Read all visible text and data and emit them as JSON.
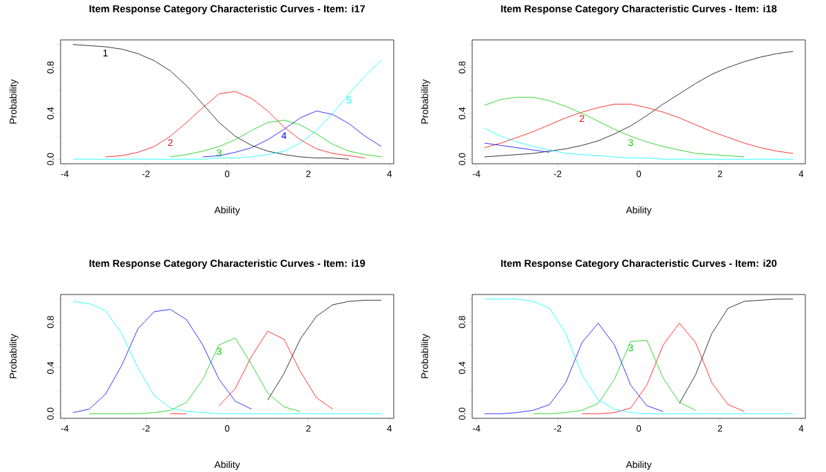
{
  "chart_data": [
    {
      "type": "line",
      "title": "Item Response Category Characteristic Curves - Item: i17",
      "xlabel": "Ability",
      "ylabel": "Probability",
      "marker": "none",
      "line_style": "solid",
      "x": [
        -3.8,
        -3.4,
        -3.0,
        -2.6,
        -2.2,
        -1.8,
        -1.4,
        -1.0,
        -0.6,
        -0.2,
        0.2,
        0.6,
        1.0,
        1.4,
        1.8,
        2.2,
        2.6,
        3.0,
        3.4,
        3.8
      ],
      "xlim": [
        -4.104,
        4.104
      ],
      "xticks": [
        -4,
        -2,
        0,
        2,
        4
      ],
      "ylim": [
        -0.04,
        1.04
      ],
      "yticks": [
        {
          "value": 0,
          "label": "0.0"
        },
        {
          "value": 0.2,
          "label": null
        },
        {
          "value": 0.4,
          "label": "0.4"
        },
        {
          "value": 0.6,
          "label": null
        },
        {
          "value": 0.8,
          "label": "0.8"
        },
        {
          "value": 1.0,
          "label": null
        }
      ],
      "series": [
        {
          "name": "1",
          "color": "#000000",
          "values": [
            1.0,
            0.99,
            0.98,
            0.96,
            0.92,
            0.86,
            0.77,
            0.64,
            0.48,
            0.32,
            0.2,
            0.12,
            0.07,
            0.04,
            0.02,
            0.01,
            0.01,
            0.0,
            null,
            null
          ]
        },
        {
          "name": "2",
          "color": "#ff0000",
          "values": [
            null,
            null,
            0.02,
            0.03,
            0.06,
            0.11,
            0.2,
            0.32,
            0.45,
            0.57,
            0.59,
            0.53,
            0.42,
            0.28,
            0.17,
            0.09,
            0.05,
            0.03,
            0.01,
            null
          ]
        },
        {
          "name": "3",
          "color": "#00cd00",
          "values": [
            null,
            null,
            null,
            null,
            null,
            null,
            0.02,
            0.04,
            0.07,
            0.11,
            0.17,
            0.25,
            0.32,
            0.34,
            0.3,
            0.22,
            0.13,
            0.07,
            0.04,
            0.02
          ]
        },
        {
          "name": "4",
          "color": "#0000ff",
          "values": [
            null,
            null,
            null,
            null,
            null,
            null,
            null,
            null,
            0.02,
            0.03,
            0.06,
            0.1,
            0.17,
            0.26,
            0.36,
            0.42,
            0.39,
            0.31,
            0.2,
            0.11
          ]
        },
        {
          "name": "5",
          "color": "#00ffff",
          "values": [
            0.0,
            0.0,
            0.0,
            0.0,
            0.0,
            0.0,
            0.0,
            0.0,
            0.0,
            0.01,
            0.01,
            0.02,
            0.04,
            0.07,
            0.14,
            0.25,
            0.4,
            0.57,
            0.73,
            0.86
          ]
        }
      ]
    },
    {
      "type": "line",
      "title": "Item Response Category Characteristic Curves - Item: i18",
      "xlabel": "Ability",
      "ylabel": "Probability",
      "marker": "none",
      "line_style": "solid",
      "x": [
        -3.8,
        -3.4,
        -3.0,
        -2.6,
        -2.2,
        -1.8,
        -1.4,
        -1.0,
        -0.6,
        -0.2,
        0.2,
        0.6,
        1.0,
        1.4,
        1.8,
        2.2,
        2.6,
        3.0,
        3.4,
        3.8
      ],
      "xlim": [
        -4.104,
        4.104
      ],
      "xticks": [
        -4,
        -2,
        0,
        2,
        4
      ],
      "ylim": [
        -0.04,
        1.04
      ],
      "yticks": [
        {
          "value": 0,
          "label": "0.0"
        },
        {
          "value": 0.2,
          "label": null
        },
        {
          "value": 0.4,
          "label": "0.4"
        },
        {
          "value": 0.6,
          "label": null
        },
        {
          "value": 0.8,
          "label": "0.8"
        },
        {
          "value": 1.0,
          "label": null
        }
      ],
      "series": [
        {
          "color": "#000000",
          "values": [
            0.02,
            0.03,
            0.04,
            0.05,
            0.07,
            0.09,
            0.12,
            0.16,
            0.22,
            0.29,
            0.38,
            0.48,
            0.57,
            0.66,
            0.74,
            0.8,
            0.85,
            0.89,
            0.92,
            0.94
          ]
        },
        {
          "name": "2",
          "color": "#ff0000",
          "values": [
            0.1,
            0.14,
            0.19,
            0.24,
            0.3,
            0.36,
            0.41,
            0.45,
            0.48,
            0.48,
            0.45,
            0.41,
            0.36,
            0.3,
            0.24,
            0.19,
            0.14,
            0.1,
            0.07,
            0.05
          ]
        },
        {
          "name": "3",
          "color": "#00cd00",
          "values": [
            0.47,
            0.52,
            0.54,
            0.54,
            0.51,
            0.46,
            0.4,
            0.33,
            0.26,
            0.2,
            0.15,
            0.11,
            0.08,
            0.05,
            0.04,
            0.03,
            0.02,
            null,
            null,
            null
          ]
        },
        {
          "color": "#0000ff",
          "values": [
            0.14,
            0.12,
            0.1,
            0.08,
            0.06,
            null,
            null,
            null,
            null,
            null,
            null,
            null,
            null,
            null,
            null,
            null,
            null,
            null,
            null,
            null
          ]
        },
        {
          "color": "#00ffff",
          "values": [
            0.27,
            0.2,
            0.15,
            0.11,
            0.08,
            0.05,
            0.04,
            0.03,
            0.02,
            0.01,
            0.01,
            0.0,
            0.0,
            0.0,
            0.0,
            0.0,
            0.0,
            0.0,
            0.0,
            0.0
          ]
        }
      ]
    },
    {
      "type": "line",
      "title": "Item Response Category Characteristic Curves - Item: i19",
      "xlabel": "Ability",
      "ylabel": "Probability",
      "marker": "none",
      "line_style": "solid",
      "x": [
        -3.8,
        -3.4,
        -3.0,
        -2.6,
        -2.2,
        -1.8,
        -1.4,
        -1.0,
        -0.6,
        -0.2,
        0.2,
        0.6,
        1.0,
        1.4,
        1.8,
        2.2,
        2.6,
        3.0,
        3.4,
        3.8
      ],
      "xlim": [
        -4.104,
        4.104
      ],
      "xticks": [
        -4,
        -2,
        0,
        2,
        4
      ],
      "ylim": [
        -0.04,
        1.04
      ],
      "yticks": [
        {
          "value": 0,
          "label": "0.0"
        },
        {
          "value": 0.2,
          "label": null
        },
        {
          "value": 0.4,
          "label": "0.4"
        },
        {
          "value": 0.6,
          "label": null
        },
        {
          "value": 0.8,
          "label": "0.8"
        },
        {
          "value": 1.0,
          "label": null
        }
      ],
      "series": [
        {
          "color": "#000000",
          "values": [
            null,
            null,
            null,
            null,
            null,
            null,
            null,
            null,
            null,
            null,
            null,
            null,
            0.12,
            0.35,
            0.65,
            0.85,
            0.95,
            0.98,
            0.99,
            0.99
          ]
        },
        {
          "color": "#ff0000",
          "values": [
            null,
            null,
            null,
            null,
            null,
            null,
            0.0,
            0.0,
            null,
            0.07,
            0.22,
            0.5,
            0.72,
            0.65,
            0.37,
            0.14,
            0.04,
            null,
            null,
            null
          ]
        },
        {
          "name": "3",
          "color": "#00cd00",
          "values": [
            null,
            0.0,
            0.0,
            0.0,
            0.0,
            0.01,
            0.03,
            0.1,
            0.3,
            0.6,
            0.66,
            0.43,
            0.18,
            0.06,
            0.02,
            null,
            null,
            null,
            null,
            null
          ]
        },
        {
          "color": "#0000ff",
          "values": [
            0.01,
            0.04,
            0.17,
            0.42,
            0.74,
            0.89,
            0.91,
            0.82,
            0.6,
            0.3,
            0.11,
            0.04,
            null,
            null,
            null,
            null,
            null,
            null,
            null,
            null
          ]
        },
        {
          "color": "#00ffff",
          "values": [
            0.98,
            0.96,
            0.9,
            0.7,
            0.4,
            0.16,
            0.05,
            0.02,
            0.01,
            0.0,
            0.0,
            0.0,
            0.0,
            0.0,
            0.0,
            0.0,
            0.0,
            0.0,
            0.0,
            0.0
          ]
        }
      ]
    },
    {
      "type": "line",
      "title": "Item Response Category Characteristic Curves - Item: i20",
      "xlabel": "Ability",
      "ylabel": "Probability",
      "marker": "none",
      "line_style": "solid",
      "x": [
        -3.8,
        -3.4,
        -3.0,
        -2.6,
        -2.2,
        -1.8,
        -1.4,
        -1.0,
        -0.6,
        -0.2,
        0.2,
        0.6,
        1.0,
        1.4,
        1.8,
        2.2,
        2.6,
        3.0,
        3.4,
        3.8
      ],
      "xlim": [
        -4.104,
        4.104
      ],
      "xticks": [
        -4,
        -2,
        0,
        2,
        4
      ],
      "ylim": [
        -0.04,
        1.04
      ],
      "yticks": [
        {
          "value": 0,
          "label": "0.0"
        },
        {
          "value": 0.2,
          "label": null
        },
        {
          "value": 0.4,
          "label": "0.4"
        },
        {
          "value": 0.6,
          "label": null
        },
        {
          "value": 0.8,
          "label": "0.8"
        },
        {
          "value": 1.0,
          "label": null
        }
      ],
      "series": [
        {
          "color": "#000000",
          "values": [
            null,
            null,
            null,
            null,
            null,
            null,
            null,
            null,
            null,
            null,
            null,
            null,
            0.09,
            0.34,
            0.7,
            0.92,
            0.98,
            0.99,
            1.0,
            1.0
          ]
        },
        {
          "color": "#ff0000",
          "values": [
            null,
            null,
            null,
            null,
            null,
            null,
            0.0,
            0.0,
            0.01,
            0.05,
            0.25,
            0.6,
            0.79,
            0.62,
            0.27,
            0.08,
            0.02,
            null,
            null,
            null
          ]
        },
        {
          "name": "3",
          "color": "#00cd00",
          "values": [
            null,
            null,
            null,
            0.0,
            0.0,
            0.01,
            0.03,
            0.09,
            0.3,
            0.63,
            0.64,
            0.31,
            0.1,
            0.03,
            null,
            null,
            null,
            null,
            null,
            null
          ]
        },
        {
          "color": "#0000ff",
          "values": [
            0.0,
            0.0,
            0.01,
            0.03,
            0.08,
            0.27,
            0.62,
            0.79,
            0.6,
            0.25,
            0.07,
            0.02,
            null,
            null,
            null,
            null,
            null,
            null,
            null,
            null
          ]
        },
        {
          "color": "#00ffff",
          "values": [
            1.0,
            1.0,
            1.0,
            0.98,
            0.92,
            0.7,
            0.34,
            0.12,
            0.04,
            0.01,
            0.0,
            0.0,
            0.0,
            0.0,
            0.0,
            0.0,
            0.0,
            0.0,
            0.0,
            0.0
          ]
        }
      ]
    }
  ]
}
